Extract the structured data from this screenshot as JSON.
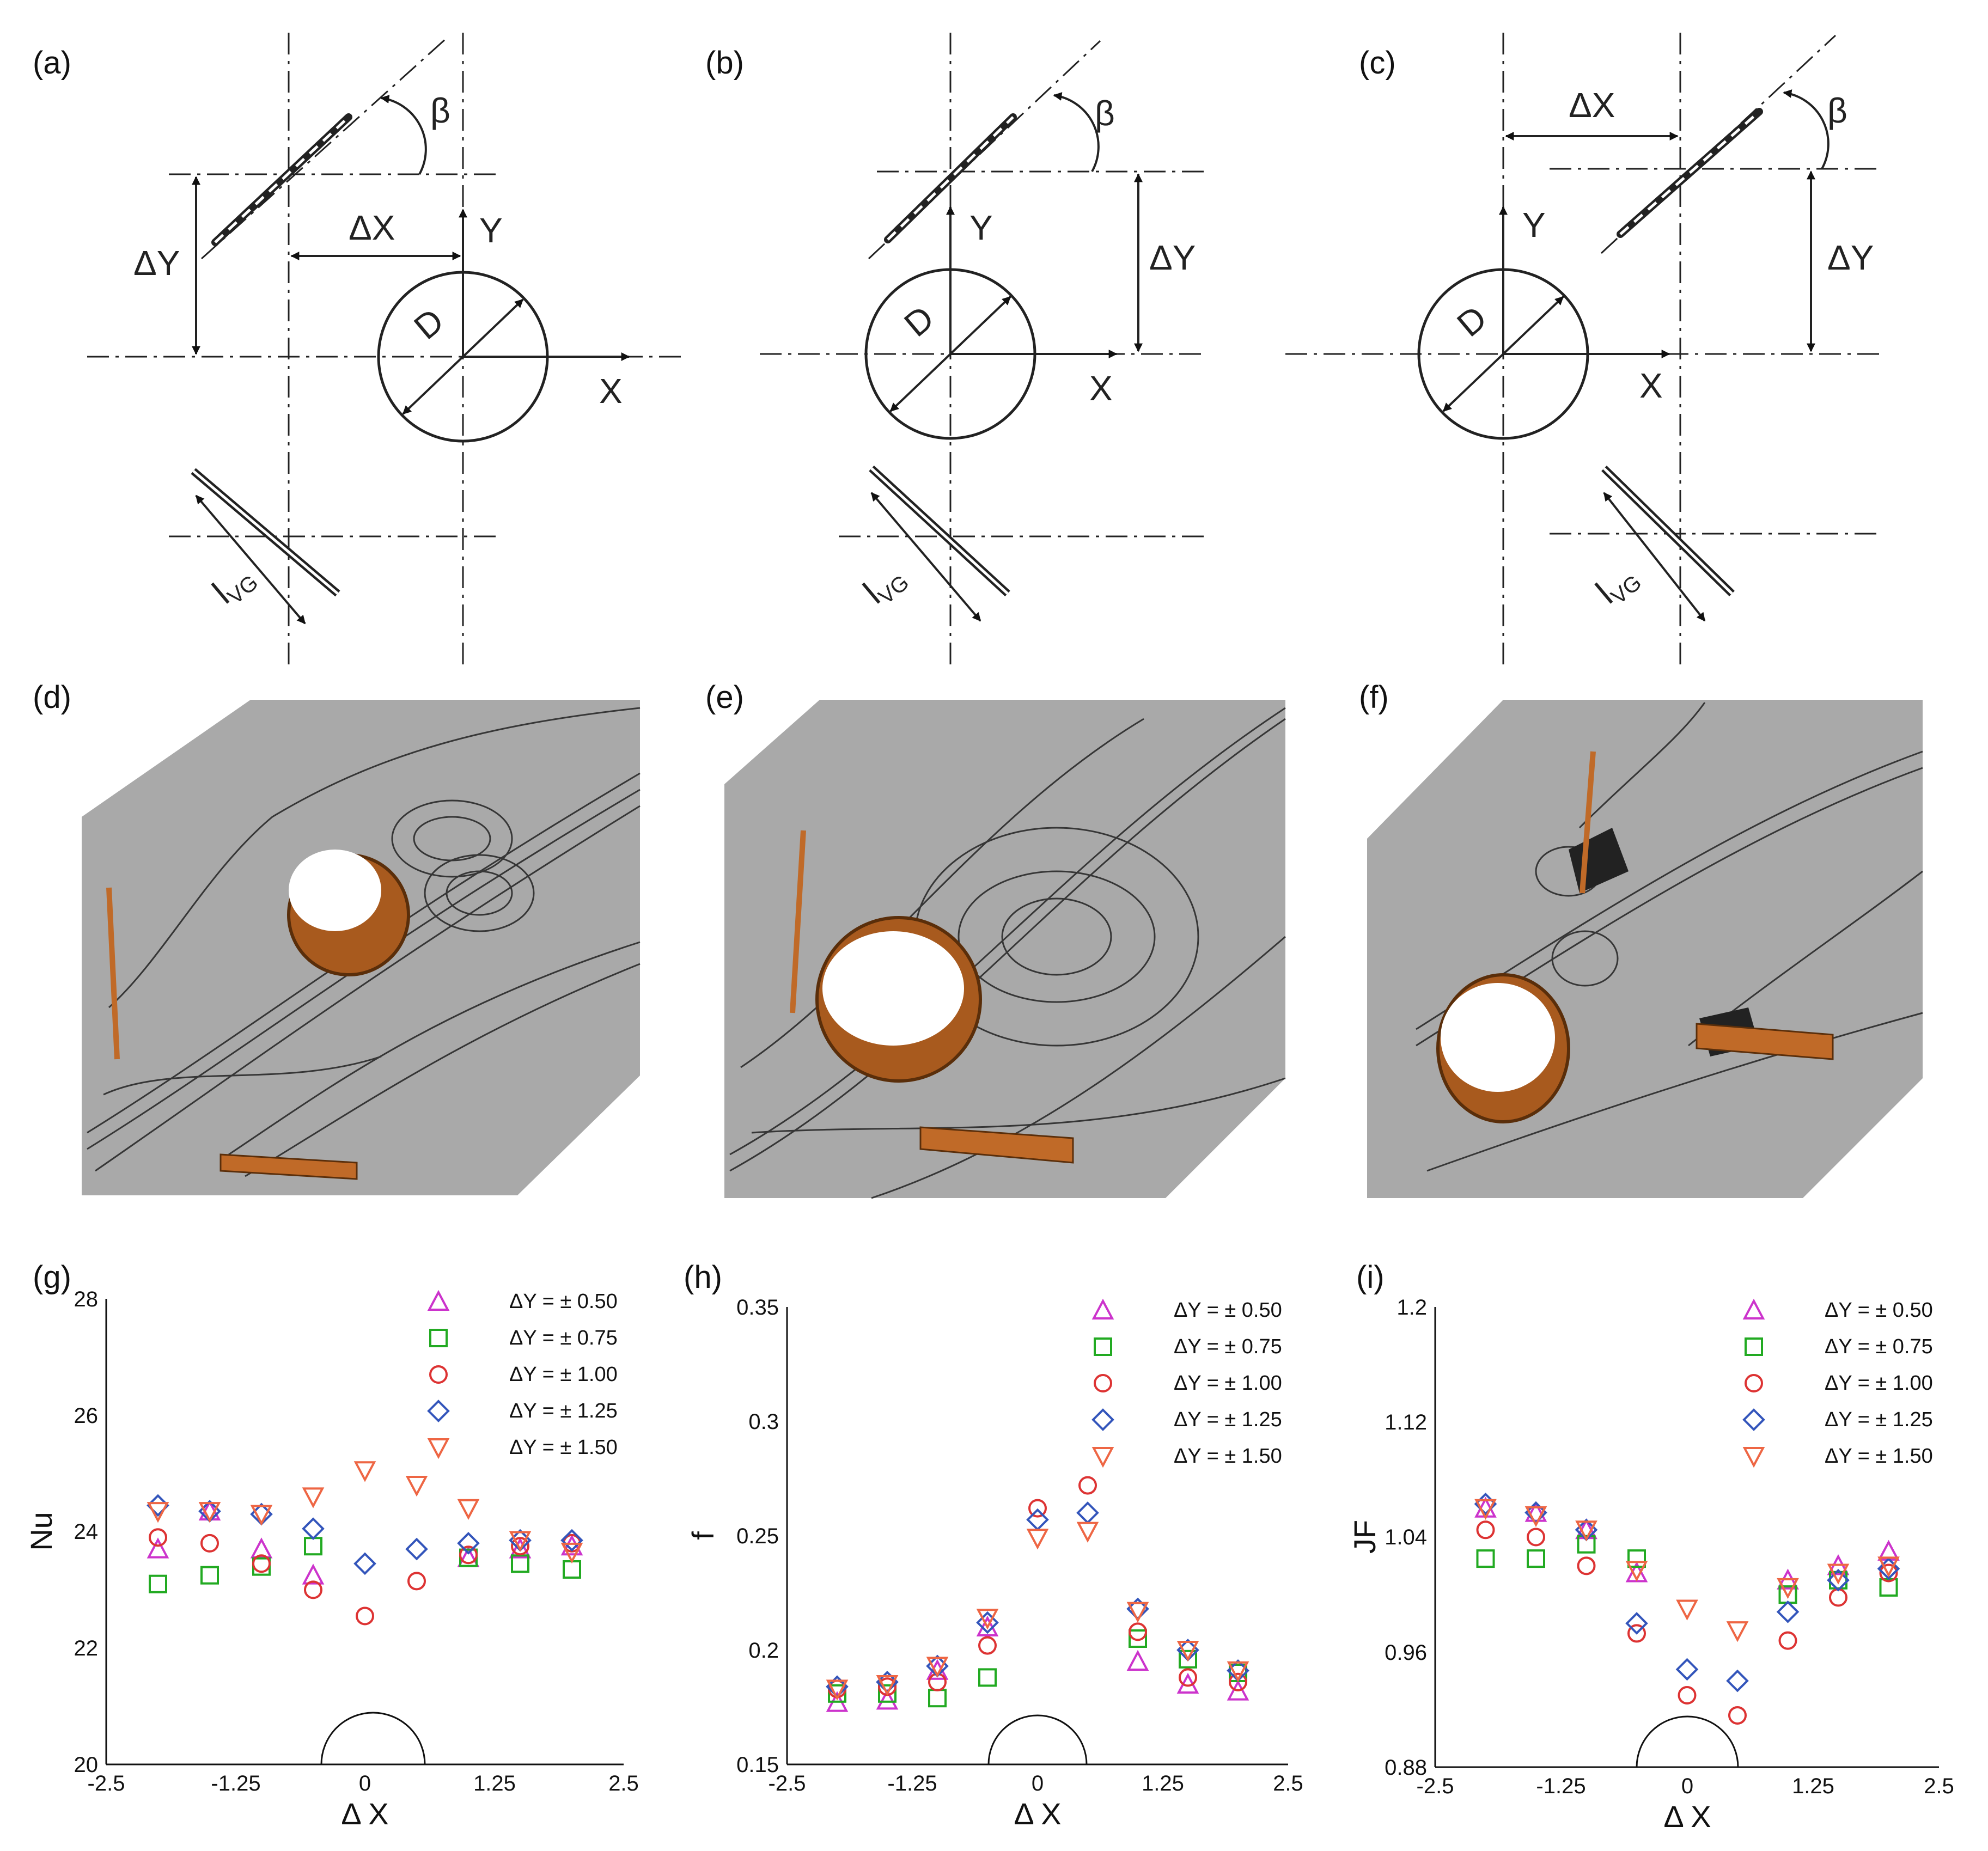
{
  "panel_tags": [
    "(a)",
    "(b)",
    "(c)",
    "(d)",
    "(e)",
    "(f)",
    "(g)",
    "(h)",
    "(i)"
  ],
  "diagram_labels": {
    "beta": "β",
    "dy": "ΔY",
    "dx": "ΔX",
    "x": "X",
    "y": "Y",
    "d": "D",
    "lvg_main": "l",
    "lvg_sub": "VG"
  },
  "colors": {
    "series": [
      "#cc33cc",
      "#22aa22",
      "#dd3333",
      "#3355bb",
      "#ee6644"
    ],
    "plate": "#c06a28",
    "streak_bg": "#a9a9a9"
  },
  "chart_data": [
    {
      "type": "scatter",
      "panel": "(g)",
      "ylabel": "Nu",
      "xlabel": "Δ X",
      "xlim": [
        -2.5,
        2.5
      ],
      "ylim": [
        20,
        28
      ],
      "xticks": [
        "-2.5",
        "-1.25",
        "0",
        "1.25",
        "2.5"
      ],
      "yticks": [
        "20",
        "22",
        "24",
        "26",
        "28"
      ],
      "legend": "top-right",
      "series": [
        {
          "name": "ΔY = ± 0.50",
          "marker": "triangle-up",
          "points": [
            [
              -2,
              23.7
            ],
            [
              -1.5,
              24.35
            ],
            [
              -1,
              23.7
            ],
            [
              -0.5,
              23.25
            ],
            [
              1,
              23.55
            ],
            [
              1.5,
              23.7
            ],
            [
              2,
              23.75
            ]
          ]
        },
        {
          "name": "ΔY = ± 0.75",
          "marker": "square",
          "points": [
            [
              -2,
              23.1
            ],
            [
              -1.5,
              23.25
            ],
            [
              -1,
              23.4
            ],
            [
              -0.5,
              23.75
            ],
            [
              1,
              23.55
            ],
            [
              1.5,
              23.45
            ],
            [
              2,
              23.35
            ]
          ]
        },
        {
          "name": "ΔY = ± 1.00",
          "marker": "circle",
          "points": [
            [
              -2,
              23.9
            ],
            [
              -1.5,
              23.8
            ],
            [
              -1,
              23.45
            ],
            [
              -0.5,
              23.0
            ],
            [
              0,
              22.55
            ],
            [
              0.5,
              23.15
            ],
            [
              1,
              23.6
            ],
            [
              1.5,
              23.75
            ],
            [
              2,
              23.8
            ]
          ]
        },
        {
          "name": "ΔY = ± 1.25",
          "marker": "diamond",
          "points": [
            [
              -2,
              24.45
            ],
            [
              -1.5,
              24.35
            ],
            [
              -1,
              24.3
            ],
            [
              -0.5,
              24.05
            ],
            [
              0,
              23.45
            ],
            [
              0.5,
              23.7
            ],
            [
              1,
              23.8
            ],
            [
              1.5,
              23.85
            ],
            [
              2,
              23.85
            ]
          ]
        },
        {
          "name": "ΔY = ± 1.50",
          "marker": "triangle-down",
          "points": [
            [
              -2,
              24.35
            ],
            [
              -1.5,
              24.35
            ],
            [
              -1,
              24.3
            ],
            [
              -0.5,
              24.6
            ],
            [
              0,
              25.05
            ],
            [
              0.5,
              24.8
            ],
            [
              1,
              24.4
            ],
            [
              1.5,
              23.85
            ],
            [
              2,
              23.65
            ]
          ]
        }
      ]
    },
    {
      "type": "scatter",
      "panel": "(h)",
      "ylabel": "f",
      "xlabel": "Δ X",
      "xlim": [
        -2.5,
        2.5
      ],
      "ylim": [
        0.15,
        0.35
      ],
      "xticks": [
        "-2.5",
        "-1.25",
        "0",
        "1.25",
        "2.5"
      ],
      "yticks": [
        "0.15",
        "0.2",
        "0.25",
        "0.3",
        "0.35"
      ],
      "legend": "top-right",
      "series": [
        {
          "name": "ΔY = ± 0.50",
          "marker": "triangle-up",
          "points": [
            [
              -2,
              0.177
            ],
            [
              -1.5,
              0.178
            ],
            [
              -1,
              0.191
            ],
            [
              -0.5,
              0.21
            ],
            [
              1,
              0.195
            ],
            [
              1.5,
              0.185
            ],
            [
              2,
              0.182
            ]
          ]
        },
        {
          "name": "ΔY = ± 0.75",
          "marker": "square",
          "points": [
            [
              -2,
              0.181
            ],
            [
              -1.5,
              0.181
            ],
            [
              -1,
              0.179
            ],
            [
              -0.5,
              0.188
            ],
            [
              1,
              0.205
            ],
            [
              1.5,
              0.196
            ],
            [
              2,
              0.19
            ]
          ]
        },
        {
          "name": "ΔY = ± 1.00",
          "marker": "circle",
          "points": [
            [
              -2,
              0.183
            ],
            [
              -1.5,
              0.184
            ],
            [
              -1,
              0.186
            ],
            [
              -0.5,
              0.202
            ],
            [
              0,
              0.262
            ],
            [
              0.5,
              0.272
            ],
            [
              1,
              0.208
            ],
            [
              1.5,
              0.188
            ],
            [
              2,
              0.186
            ]
          ]
        },
        {
          "name": "ΔY = ± 1.25",
          "marker": "diamond",
          "points": [
            [
              -2,
              0.184
            ],
            [
              -1.5,
              0.186
            ],
            [
              -1,
              0.193
            ],
            [
              -0.5,
              0.212
            ],
            [
              0,
              0.257
            ],
            [
              0.5,
              0.26
            ],
            [
              1,
              0.218
            ],
            [
              1.5,
              0.2
            ],
            [
              2,
              0.191
            ]
          ]
        },
        {
          "name": "ΔY = ± 1.50",
          "marker": "triangle-down",
          "points": [
            [
              -2,
              0.183
            ],
            [
              -1.5,
              0.185
            ],
            [
              -1,
              0.193
            ],
            [
              -0.5,
              0.214
            ],
            [
              0,
              0.249
            ],
            [
              0.5,
              0.252
            ],
            [
              1,
              0.217
            ],
            [
              1.5,
              0.2
            ],
            [
              2,
              0.191
            ]
          ]
        }
      ]
    },
    {
      "type": "scatter",
      "panel": "(i)",
      "ylabel": "JF",
      "xlabel": "Δ X",
      "xlim": [
        -2.5,
        2.5
      ],
      "ylim": [
        0.88,
        1.2
      ],
      "xticks": [
        "-2.5",
        "-1.25",
        "0",
        "1.25",
        "2.5"
      ],
      "yticks": [
        "0.88",
        "0.96",
        "1.04",
        "1.12",
        "1.2"
      ],
      "legend": "top-right",
      "series": [
        {
          "name": "ΔY = ± 0.50",
          "marker": "triangle-up",
          "points": [
            [
              -2,
              1.06
            ],
            [
              -1.5,
              1.057
            ],
            [
              -1,
              1.045
            ],
            [
              -0.5,
              1.015
            ],
            [
              1,
              1.01
            ],
            [
              1.5,
              1.02
            ],
            [
              2,
              1.03
            ]
          ]
        },
        {
          "name": "ΔY = ± 0.75",
          "marker": "square",
          "points": [
            [
              -2,
              1.025
            ],
            [
              -1.5,
              1.025
            ],
            [
              -1,
              1.035
            ],
            [
              -0.5,
              1.025
            ],
            [
              1,
              1.0
            ],
            [
              1.5,
              1.01
            ],
            [
              2,
              1.005
            ]
          ]
        },
        {
          "name": "ΔY = ± 1.00",
          "marker": "circle",
          "points": [
            [
              -2,
              1.045
            ],
            [
              -1.5,
              1.04
            ],
            [
              -1,
              1.02
            ],
            [
              -0.5,
              0.973
            ],
            [
              0,
              0.93
            ],
            [
              0.5,
              0.916
            ],
            [
              1,
              0.968
            ],
            [
              1.5,
              0.998
            ],
            [
              2,
              1.015
            ]
          ]
        },
        {
          "name": "ΔY = ± 1.25",
          "marker": "diamond",
          "points": [
            [
              -2,
              1.063
            ],
            [
              -1.5,
              1.057
            ],
            [
              -1,
              1.045
            ],
            [
              -0.5,
              0.98
            ],
            [
              0,
              0.948
            ],
            [
              0.5,
              0.94
            ],
            [
              1,
              0.988
            ],
            [
              1.5,
              1.01
            ],
            [
              2,
              1.018
            ]
          ]
        },
        {
          "name": "ΔY = ± 1.50",
          "marker": "triangle-down",
          "points": [
            [
              -2,
              1.06
            ],
            [
              -1.5,
              1.055
            ],
            [
              -1,
              1.045
            ],
            [
              -0.5,
              1.017
            ],
            [
              0,
              0.99
            ],
            [
              0.5,
              0.975
            ],
            [
              1,
              1.005
            ],
            [
              1.5,
              1.015
            ],
            [
              2,
              1.02
            ]
          ]
        }
      ]
    }
  ]
}
